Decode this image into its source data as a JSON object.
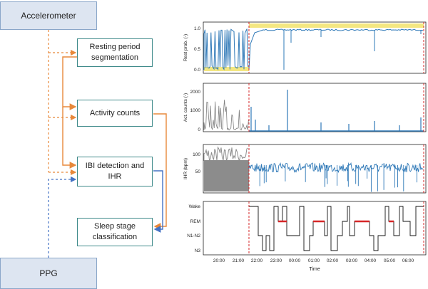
{
  "diagram": {
    "sources": {
      "accelerometer": "Accelerometer",
      "ppg": "PPG"
    },
    "steps": {
      "segmentation": "Resting period segmentation",
      "activity": "Activity counts",
      "ibi": "IBI detection and IHR",
      "sleep": "Sleep stage classification"
    },
    "colors": {
      "accel_arrow": "#e8893b",
      "ppg_arrow": "#4472c4",
      "box_border": "#3f8a8a",
      "source_fill": "#dde5f1"
    }
  },
  "chart_data": [
    {
      "type": "line",
      "ylabel": "Rest prob. (-)",
      "yticks": [
        "0.0",
        "0.5",
        "1.0"
      ],
      "ylim": [
        0,
        1.05
      ],
      "colors": {
        "line": "#2e78b7",
        "highlight": "#f2e36b",
        "marker": "#d62728"
      }
    },
    {
      "type": "line",
      "ylabel": "Act. counts (-)",
      "yticks": [
        "0",
        "1000",
        "2000"
      ],
      "ylim": [
        0,
        2300
      ],
      "colors": {
        "pre_rest": "#7f7f7f",
        "line": "#2e78b7",
        "marker": "#d62728"
      }
    },
    {
      "type": "line",
      "ylabel": "IHR (bpm)",
      "yticks": [
        "50",
        "100"
      ],
      "ylim": [
        25,
        115
      ],
      "colors": {
        "pre_rest": "#8c8c8c",
        "line": "#2e78b7",
        "marker": "#d62728"
      }
    },
    {
      "type": "step",
      "ylabel": "",
      "categories": [
        "Wake",
        "REM",
        "N1-N2",
        "N3"
      ],
      "colors": {
        "line": "#111111",
        "rem": "#d62728",
        "marker": "#d62728"
      }
    }
  ],
  "x_axis": {
    "label": "Time",
    "ticks": [
      "20:00",
      "21:00",
      "22:00",
      "23:00",
      "00:00",
      "01:00",
      "02:00",
      "03:00",
      "04:00",
      "05:00",
      "06:00"
    ]
  }
}
